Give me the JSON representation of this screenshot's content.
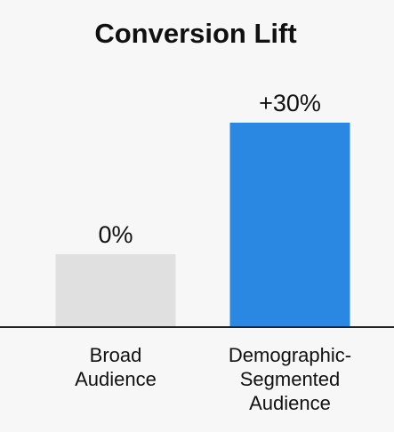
{
  "chart_data": {
    "type": "bar",
    "title": "Conversion Lift",
    "categories": [
      [
        "Broad",
        "Audience"
      ],
      [
        "Demographic-",
        "Segmented",
        "Audience"
      ]
    ],
    "values": [
      0,
      30
    ],
    "value_labels": [
      "0%",
      "+30%"
    ],
    "colors": [
      "#e0e0e0",
      "#2b88e2"
    ],
    "axis_color": "#222222",
    "xlabel": "",
    "ylabel": "",
    "ylim": [
      -20,
      30
    ],
    "grid": false,
    "legend": "none"
  }
}
